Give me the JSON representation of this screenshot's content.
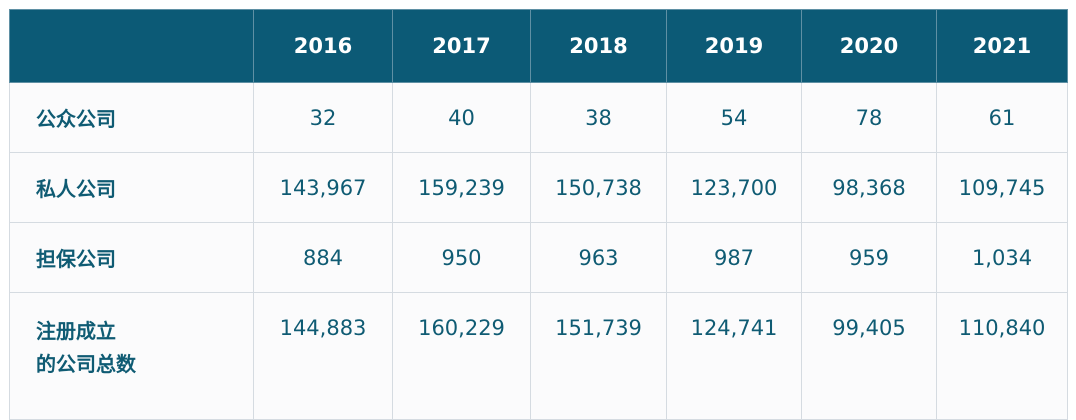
{
  "table": {
    "headers": [
      "",
      "2016",
      "2017",
      "2018",
      "2019",
      "2020",
      "2021"
    ],
    "rows": [
      {
        "label": "公众公司",
        "values": [
          "32",
          "40",
          "38",
          "54",
          "78",
          "61"
        ]
      },
      {
        "label": "私人公司",
        "values": [
          "143,967",
          "159,239",
          "150,738",
          "123,700",
          "98,368",
          "109,745"
        ]
      },
      {
        "label": "担保公司",
        "values": [
          "884",
          "950",
          "963",
          "987",
          "959",
          "1,034"
        ]
      },
      {
        "label_lines": [
          "注册成立",
          "的公司总数"
        ],
        "values": [
          "144,883",
          "160,229",
          "151,739",
          "124,741",
          "99,405",
          "110,840"
        ]
      }
    ]
  },
  "colors": {
    "header_bg": "#0c5a76",
    "header_text": "#ffffff",
    "body_text": "#0f5b73",
    "grid": "#d5dbe1"
  }
}
